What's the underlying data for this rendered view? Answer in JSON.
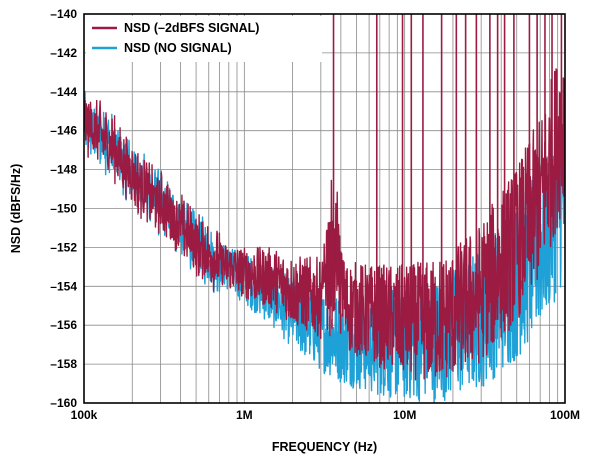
{
  "chart_data": {
    "type": "line",
    "xlabel": "FREQUENCY (Hz)",
    "ylabel": "NSD (dBFS/Hz)",
    "x_scale": "log",
    "xlim": [
      100000,
      100000000
    ],
    "ylim": [
      -160,
      -140
    ],
    "x_ticks": [
      {
        "value": 100000,
        "label": "100k"
      },
      {
        "value": 1000000,
        "label": "1M"
      },
      {
        "value": 10000000,
        "label": "10M"
      },
      {
        "value": 100000000,
        "label": "100M"
      }
    ],
    "y_ticks": [
      {
        "value": -140,
        "label": "–140"
      },
      {
        "value": -142,
        "label": "–142"
      },
      {
        "value": -144,
        "label": "–144"
      },
      {
        "value": -146,
        "label": "–146"
      },
      {
        "value": -148,
        "label": "–148"
      },
      {
        "value": -150,
        "label": "–150"
      },
      {
        "value": -152,
        "label": "–152"
      },
      {
        "value": -154,
        "label": "–154"
      },
      {
        "value": -156,
        "label": "–156"
      },
      {
        "value": -158,
        "label": "–158"
      },
      {
        "value": -160,
        "label": "–160"
      }
    ],
    "grid": true,
    "legend_position": "top-left",
    "series": [
      {
        "name": "NSD (–2dBFS SIGNAL)",
        "color": "#9b1b42",
        "envelope_x": [
          100000,
          150000,
          200000,
          300000,
          400000,
          500000,
          700000,
          1000000,
          1500000,
          2000000,
          3000000,
          4000000,
          6000000,
          10000000,
          15000000,
          20000000,
          30000000,
          50000000,
          70000000,
          100000000
        ],
        "envelope_y": [
          -145.5,
          -146.8,
          -148.3,
          -149.8,
          -150.8,
          -151.8,
          -152.8,
          -153.3,
          -153.6,
          -154.2,
          -154.6,
          -154.9,
          -155.4,
          -155.8,
          -155.8,
          -155.4,
          -154.3,
          -151.8,
          -149.5,
          -145.2
        ],
        "spurs_x": [
          3600000,
          6700000,
          9700000,
          11000000,
          13000000,
          17000000,
          21000000,
          24000000,
          28000000,
          34000000,
          38000000,
          42000000,
          48000000,
          60000000,
          67000000,
          75000000,
          83000000,
          95000000
        ],
        "spurs_y": [
          -140,
          -140,
          -140,
          -140,
          -140,
          -140,
          -140,
          -140,
          -140,
          -140,
          -140,
          -140,
          -140,
          -140,
          -140,
          -140,
          -140,
          -140
        ]
      },
      {
        "name": "NSD (NO SIGNAL)",
        "color": "#1ea1d6",
        "envelope_x": [
          100000,
          150000,
          200000,
          300000,
          400000,
          500000,
          700000,
          1000000,
          1500000,
          2000000,
          3000000,
          4000000,
          6000000,
          10000000,
          15000000,
          20000000,
          30000000,
          50000000,
          70000000,
          100000000
        ],
        "envelope_y": [
          -145.6,
          -146.8,
          -148.2,
          -149.8,
          -150.9,
          -151.8,
          -152.8,
          -153.6,
          -154.5,
          -155.4,
          -156.3,
          -156.7,
          -157.0,
          -157.0,
          -156.8,
          -156.4,
          -155.6,
          -153.8,
          -152.0,
          -149.2
        ],
        "spurs_x": [],
        "spurs_y": []
      }
    ]
  }
}
